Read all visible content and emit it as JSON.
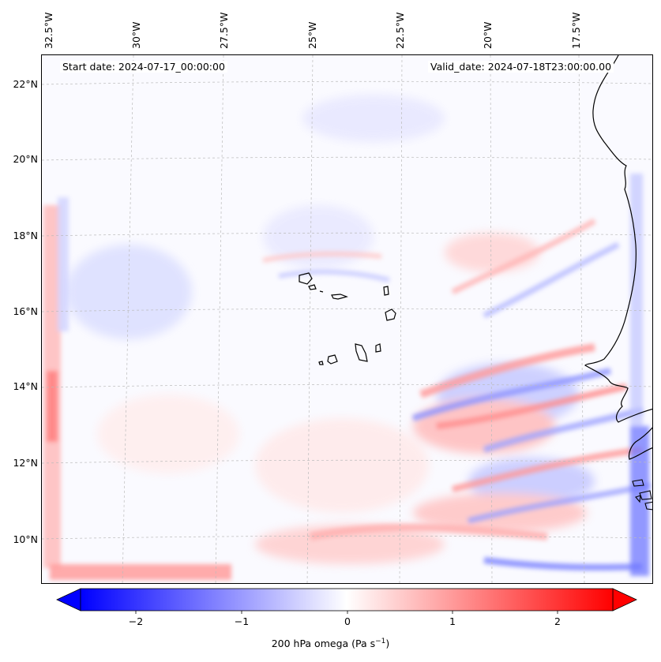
{
  "header": {
    "start_date": "Start date: 2024-07-17_00:00:00",
    "valid_date": "Valid_date: 2024-07-18T23:00:00.00"
  },
  "axes": {
    "lon_labels": [
      "32.5°W",
      "30°W",
      "27.5°W",
      "25°W",
      "22.5°W",
      "20°W",
      "17.5°W"
    ],
    "lat_labels": [
      "22°N",
      "20°N",
      "18°N",
      "16°N",
      "14°N",
      "12°N",
      "10°N"
    ]
  },
  "colorbar": {
    "ticks": [
      "−2",
      "−1",
      "0",
      "1",
      "2"
    ],
    "label_main": "200 hPa omega (Pa s",
    "label_exp": "−1",
    "label_close": ")",
    "min_color": "#0000ff",
    "mid_color": "#ffffff",
    "max_color": "#ff0000",
    "range": [
      -2.7,
      2.7
    ]
  },
  "colors": {
    "coastline": "#000000",
    "gridline": "#bbbbbb"
  }
}
